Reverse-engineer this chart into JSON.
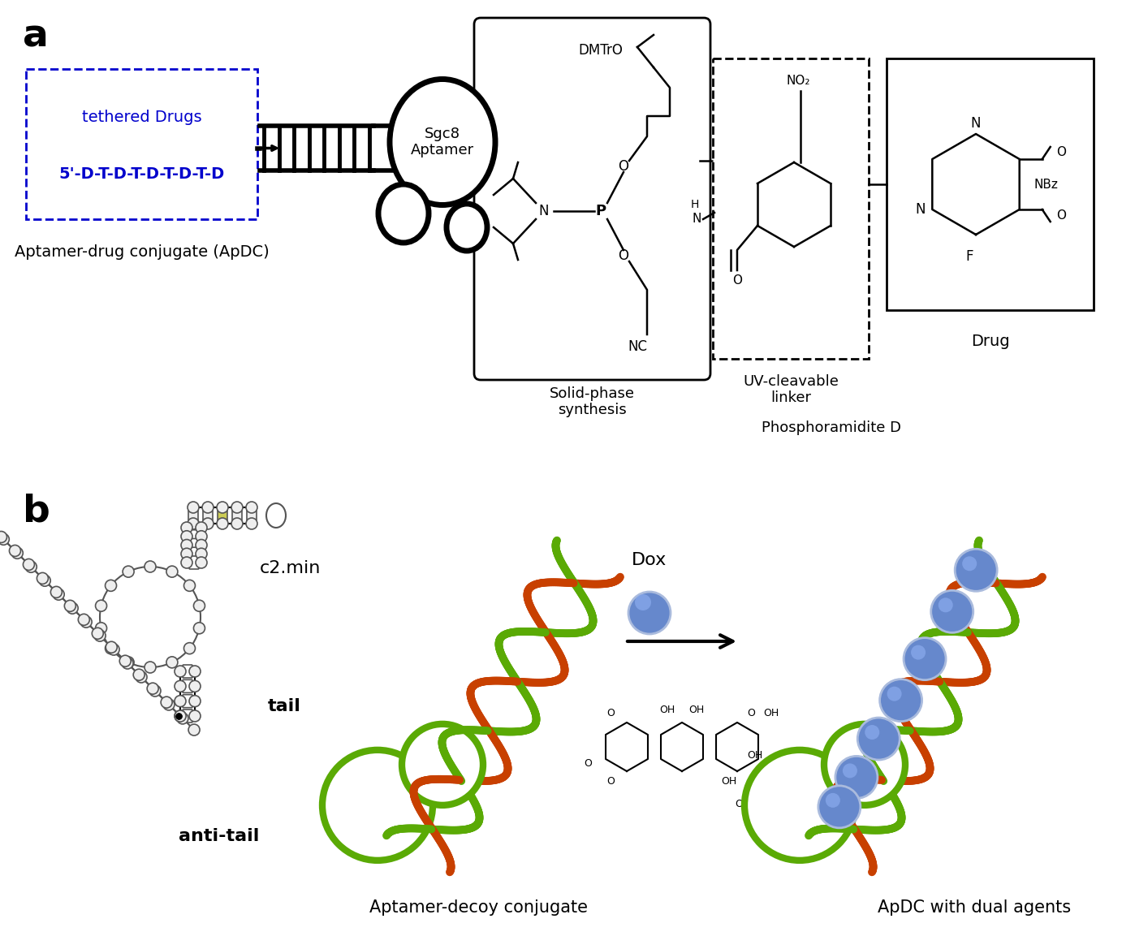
{
  "panel_a": "a",
  "panel_b": "b",
  "tethered_drugs": "tethered Drugs",
  "sequence": "5'-D-T-D-T-D-T-D-T-D",
  "aptamer_name": "Sgc8\nAptamer",
  "apdc_label": "Aptamer-drug conjugate (ApDC)",
  "solid_phase": "Solid-phase\nsynthesis",
  "phosphoramidite_d": "Phosphoramidite D",
  "uv_linker": "UV-cleavable\nlinker",
  "drug_text": "Drug",
  "dmtro": "DMTrO",
  "nc": "NC",
  "no2": "NO₂",
  "nbz": "NBz",
  "f_atom": "F",
  "c2min": "c2.min",
  "tail": "tail",
  "anti_tail": "anti-tail",
  "dox": "Dox",
  "aptamer_decoy": "Aptamer-decoy conjugate",
  "apdc_dual": "ApDC with dual agents",
  "blue": "#0000CC",
  "black": "#000000",
  "green": "#5AAA05",
  "orange": "#C84000",
  "sphere_blue": "#6688CC",
  "sphere_blue_light": "#8AABEE",
  "yellow_green": "#CCCC55",
  "yellow_green2": "#D4D460",
  "gray_node": "#AAAAAA",
  "white": "#FFFFFF",
  "fig_w": 13.82,
  "fig_h": 11.53
}
